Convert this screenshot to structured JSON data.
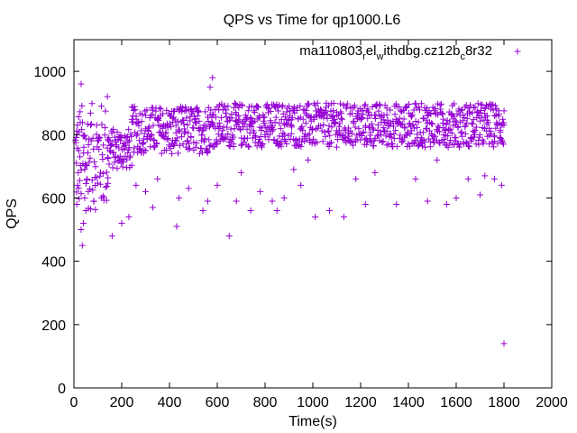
{
  "chart_data": {
    "type": "scatter",
    "title": "QPS vs Time for qp1000.L6",
    "xlabel": "Time(s)",
    "ylabel": "QPS",
    "xlim": [
      0,
      2000
    ],
    "ylim": [
      0,
      1100
    ],
    "xticks": [
      0,
      200,
      400,
      600,
      800,
      1000,
      1200,
      1400,
      1600,
      1800,
      2000
    ],
    "yticks": [
      0,
      200,
      400,
      600,
      800,
      1000
    ],
    "grid": false,
    "legend_position": "top-right",
    "color": "#9400d3",
    "legend": {
      "base": "ma110803",
      "sub1": "r",
      "mid1": "el",
      "sub2": "w",
      "mid2": "ithdbg.cz12b",
      "sub3": "c",
      "tail": "8r32"
    },
    "series": [
      {
        "bands": [
          {
            "x_start": 5,
            "x_end": 140,
            "y_min": 560,
            "y_max": 900
          },
          {
            "x_start": 140,
            "x_end": 240,
            "y_min": 690,
            "y_max": 820
          },
          {
            "x_start": 240,
            "x_end": 560,
            "y_min": 740,
            "y_max": 890
          },
          {
            "x_start": 560,
            "x_end": 1800,
            "y_min": 760,
            "y_max": 900
          }
        ],
        "points": [
          [
            10,
            710
          ],
          [
            12,
            580
          ],
          [
            15,
            640
          ],
          [
            18,
            680
          ],
          [
            20,
            750
          ],
          [
            25,
            730
          ],
          [
            30,
            500
          ],
          [
            35,
            450
          ],
          [
            40,
            520
          ],
          [
            45,
            600
          ],
          [
            50,
            560
          ],
          [
            55,
            660
          ],
          [
            60,
            620
          ],
          [
            30,
            960
          ],
          [
            70,
            830
          ],
          [
            140,
            920
          ],
          [
            160,
            480
          ],
          [
            200,
            520
          ],
          [
            230,
            540
          ],
          [
            260,
            640
          ],
          [
            300,
            620
          ],
          [
            330,
            570
          ],
          [
            350,
            660
          ],
          [
            410,
            740
          ],
          [
            430,
            510
          ],
          [
            440,
            600
          ],
          [
            480,
            630
          ],
          [
            510,
            760
          ],
          [
            540,
            560
          ],
          [
            560,
            590
          ],
          [
            570,
            950
          ],
          [
            580,
            980
          ],
          [
            600,
            640
          ],
          [
            650,
            480
          ],
          [
            680,
            590
          ],
          [
            700,
            680
          ],
          [
            740,
            560
          ],
          [
            780,
            620
          ],
          [
            830,
            590
          ],
          [
            850,
            560
          ],
          [
            880,
            600
          ],
          [
            920,
            690
          ],
          [
            950,
            640
          ],
          [
            980,
            720
          ],
          [
            1010,
            540
          ],
          [
            1070,
            560
          ],
          [
            1130,
            540
          ],
          [
            1180,
            660
          ],
          [
            1220,
            580
          ],
          [
            1260,
            680
          ],
          [
            1350,
            580
          ],
          [
            1430,
            660
          ],
          [
            1480,
            590
          ],
          [
            1520,
            720
          ],
          [
            1560,
            580
          ],
          [
            1600,
            600
          ],
          [
            1650,
            660
          ],
          [
            1700,
            610
          ],
          [
            1720,
            670
          ],
          [
            1760,
            660
          ],
          [
            1790,
            640
          ],
          [
            1800,
            140
          ]
        ]
      }
    ]
  }
}
